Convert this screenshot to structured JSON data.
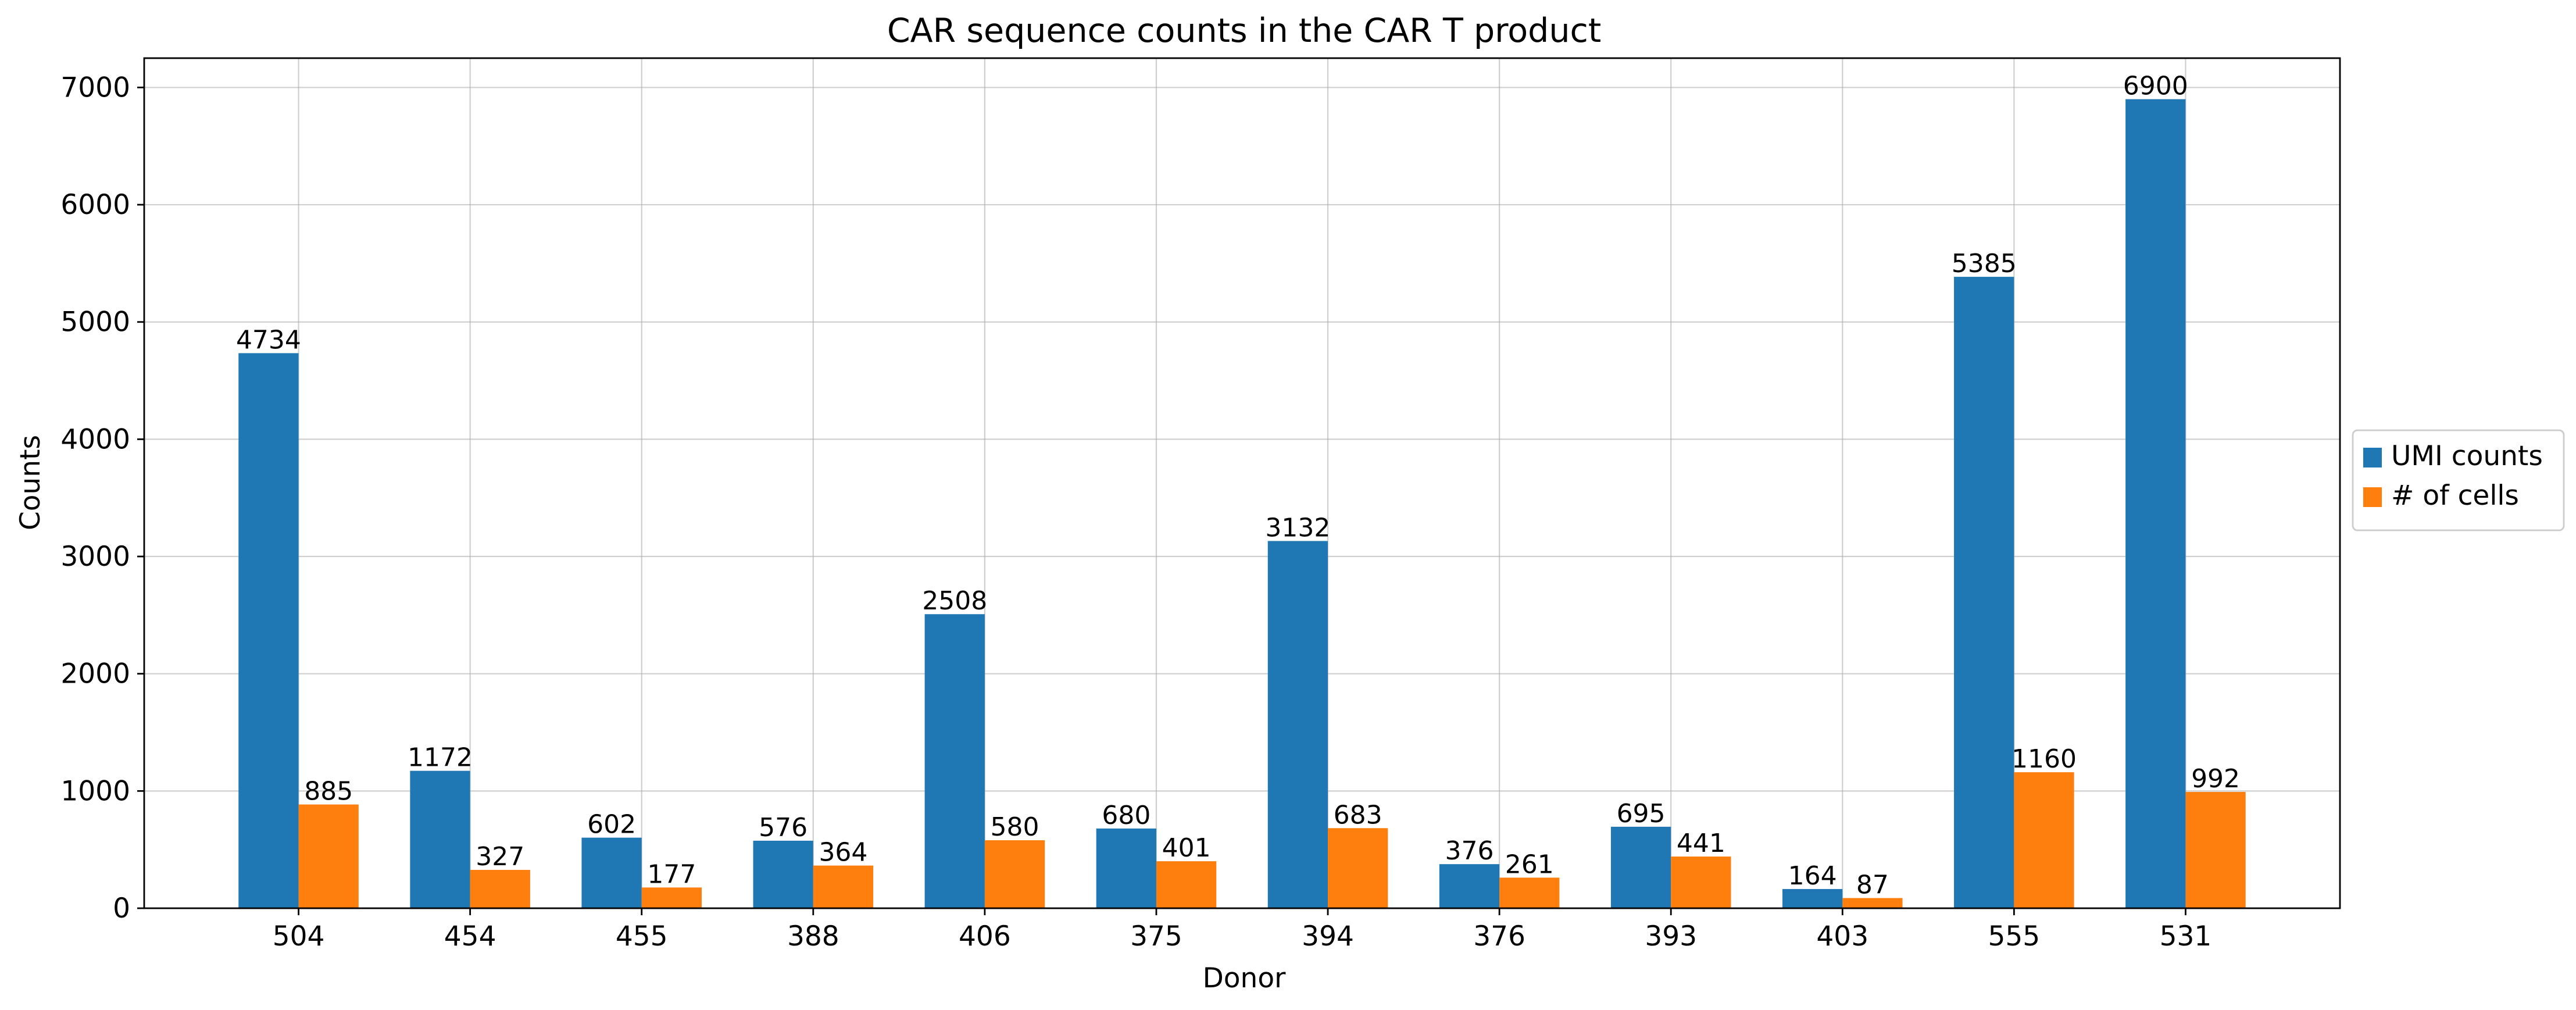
{
  "chart_data": {
    "type": "bar",
    "title": "CAR sequence counts in the CAR T product",
    "xlabel": "Donor",
    "ylabel": "Counts",
    "categories": [
      "504",
      "454",
      "455",
      "388",
      "406",
      "375",
      "394",
      "376",
      "393",
      "403",
      "555",
      "531"
    ],
    "series": [
      {
        "name": "UMI counts",
        "color": "#1f77b4",
        "values": [
          4734,
          1172,
          602,
          576,
          2508,
          680,
          3132,
          376,
          695,
          164,
          5385,
          6900
        ]
      },
      {
        "name": "# of cells",
        "color": "#ff7f0e",
        "values": [
          885,
          327,
          177,
          364,
          580,
          401,
          683,
          261,
          441,
          87,
          1160,
          992
        ]
      }
    ],
    "ylim": [
      0,
      7250
    ],
    "yticks": [
      0,
      1000,
      2000,
      3000,
      4000,
      5000,
      6000,
      7000
    ],
    "grid": true,
    "legend_position": "right-center",
    "data_labels": true
  }
}
